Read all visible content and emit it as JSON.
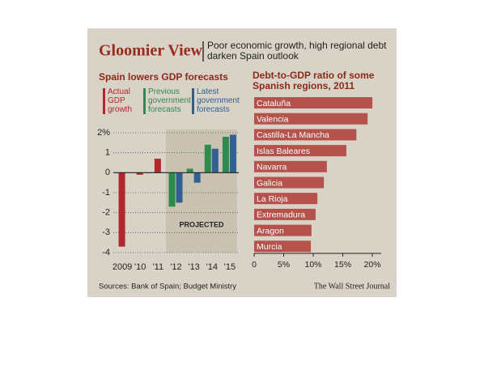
{
  "title": "Gloomier View",
  "subtitle": "Poor economic growth, high regional debt darken Spain outlook",
  "source": "Sources: Bank of Spain; Budget Ministry",
  "credit": "The Wall Street Journal",
  "chart_data": [
    {
      "type": "bar",
      "title": "Spain lowers GDP forecasts",
      "categories": [
        "2009",
        "'10",
        "'11",
        "'12",
        "'13",
        "'14",
        "'15"
      ],
      "series": [
        {
          "name": "Actual GDP growth",
          "color": "#b3262b",
          "values": [
            -3.7,
            -0.1,
            0.7,
            null,
            null,
            null,
            null
          ]
        },
        {
          "name": "Previous government forecasts",
          "color": "#2e8a4e",
          "values": [
            null,
            null,
            null,
            -1.7,
            0.2,
            1.4,
            1.8
          ]
        },
        {
          "name": "Latest government forecasts",
          "color": "#2f5f93",
          "values": [
            null,
            null,
            null,
            -1.5,
            -0.5,
            1.2,
            1.9
          ]
        }
      ],
      "annotation": "PROJECTED",
      "ylim": [
        -4,
        2
      ],
      "yticks": [
        -4,
        -3,
        -2,
        -1,
        0,
        1,
        {
          "value": 2,
          "label": "2%"
        }
      ],
      "grid": true
    },
    {
      "type": "bar",
      "horizontal": true,
      "title": "Debt-to-GDP ratio of some Spanish regions, 2011",
      "categories": [
        "Cataluña",
        "Valencia",
        "Castilla-La Mancha",
        "Islas Baleares",
        "Navarra",
        "Galicia",
        "La Rioja",
        "Extremadura",
        "Aragon",
        "Murcia"
      ],
      "values": [
        20.0,
        19.2,
        17.3,
        15.6,
        12.3,
        11.8,
        10.7,
        10.4,
        9.7,
        9.6
      ],
      "color": "#b4524b",
      "xlim": [
        0,
        21.5
      ],
      "xticks": [
        0,
        {
          "value": 5,
          "label": "5%"
        },
        {
          "value": 10,
          "label": "10%"
        },
        {
          "value": 15,
          "label": "15%"
        },
        {
          "value": 20,
          "label": "20%"
        }
      ]
    }
  ]
}
